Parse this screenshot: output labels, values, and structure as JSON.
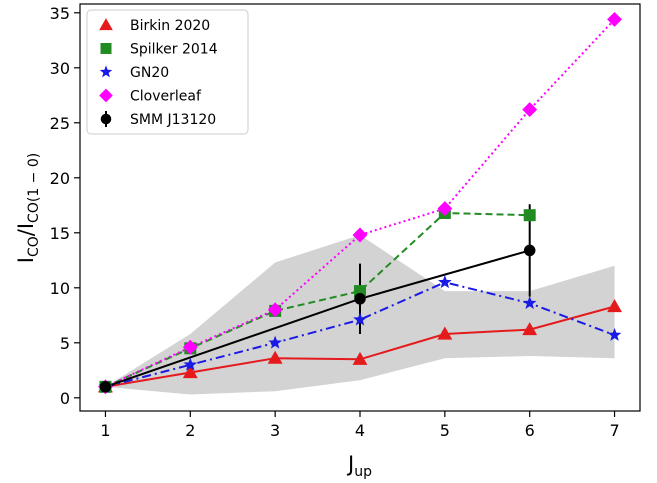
{
  "chart_data": {
    "type": "line",
    "xlabel": {
      "main": "J",
      "sub": "up"
    },
    "ylabel": {
      "main": "I",
      "sub1": "CO",
      "mid": "/I",
      "sub2": "CO(1 − 0)"
    },
    "xlim": [
      0.7,
      7.3
    ],
    "ylim": [
      -1.2,
      35.8
    ],
    "xticks": [
      1,
      2,
      3,
      4,
      5,
      6,
      7
    ],
    "yticks": [
      0,
      5,
      10,
      15,
      20,
      25,
      30,
      35
    ],
    "grid": false,
    "legend_position": "top-left",
    "band": {
      "color": "#d3d3d3",
      "x": [
        1,
        2,
        3,
        4,
        5,
        6,
        7
      ],
      "upper": [
        1.0,
        5.8,
        12.3,
        14.8,
        9.7,
        9.7,
        12.0
      ],
      "lower": [
        1.0,
        0.3,
        0.6,
        1.6,
        3.6,
        3.8,
        3.6
      ]
    },
    "series": [
      {
        "name": "Birkin 2020",
        "color": "#e41a1c",
        "marker": "triangle",
        "linestyle": "solid",
        "x": [
          1,
          2,
          3,
          4,
          5,
          6,
          7
        ],
        "values": [
          1.0,
          2.3,
          3.6,
          3.5,
          5.8,
          6.2,
          8.3
        ]
      },
      {
        "name": "Spilker 2014",
        "color": "#228b22",
        "marker": "square",
        "linestyle": "dashed",
        "x": [
          1,
          2,
          3,
          4,
          5,
          6
        ],
        "values": [
          1.0,
          4.5,
          7.9,
          9.7,
          16.8,
          16.6
        ]
      },
      {
        "name": "GN20",
        "color": "#1a1ae6",
        "marker": "star",
        "linestyle": "dashdot",
        "x": [
          1,
          2,
          3,
          4,
          5,
          6,
          7
        ],
        "values": [
          1.0,
          3.0,
          5.0,
          7.1,
          10.5,
          8.6,
          5.7
        ]
      },
      {
        "name": "Cloverleaf",
        "color": "#ff00ff",
        "marker": "diamond",
        "linestyle": "dotted",
        "x": [
          1,
          2,
          3,
          4,
          5,
          6,
          7
        ],
        "values": [
          1.0,
          4.6,
          8.0,
          14.8,
          17.2,
          26.2,
          34.4
        ]
      },
      {
        "name": "SMM J13120",
        "color": "#000000",
        "marker": "circle",
        "linestyle": "solid",
        "x": [
          1,
          4,
          6
        ],
        "values": [
          1.0,
          9.0,
          13.4
        ],
        "yerr": [
          0.3,
          3.2,
          4.2
        ]
      }
    ]
  }
}
